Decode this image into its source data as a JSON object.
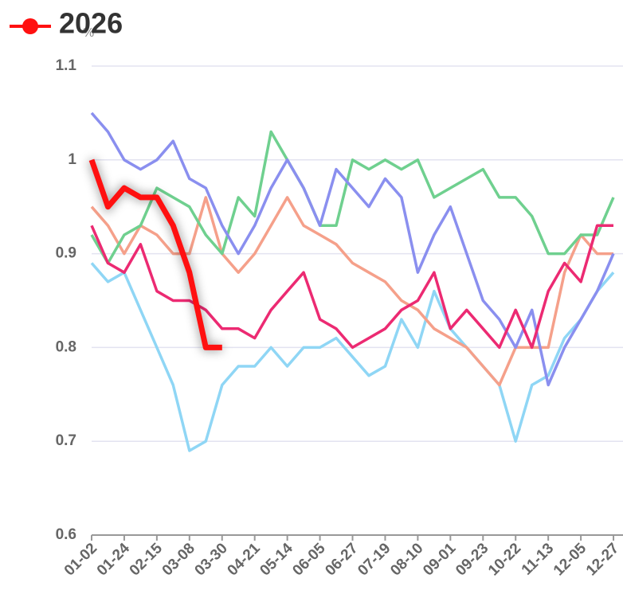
{
  "chart_data": {
    "type": "line",
    "ylabel": "%",
    "categories": [
      "01-02",
      null,
      "01-24",
      null,
      "02-15",
      null,
      "03-08",
      null,
      "03-30",
      null,
      "04-21",
      null,
      "05-14",
      null,
      "06-05",
      null,
      "06-27",
      null,
      "07-19",
      null,
      "08-10",
      null,
      "09-01",
      null,
      "09-23",
      null,
      "10-22",
      null,
      "11-13",
      null,
      "12-05",
      null,
      "12-27"
    ],
    "series": [
      {
        "color": "#8fd6f5",
        "values": [
          0.89,
          0.87,
          0.88,
          0.84,
          0.8,
          0.76,
          0.69,
          0.7,
          0.76,
          0.78,
          0.78,
          0.8,
          0.78,
          0.8,
          0.8,
          0.81,
          0.79,
          0.77,
          0.78,
          0.83,
          0.8,
          0.86,
          0.82,
          0.8,
          0.78,
          0.76,
          0.7,
          0.76,
          0.77,
          0.81,
          0.83,
          0.86,
          0.88
        ]
      },
      {
        "color": "#f5a08a",
        "values": [
          0.95,
          0.93,
          0.9,
          0.93,
          0.92,
          0.9,
          0.9,
          0.96,
          0.9,
          0.88,
          0.9,
          0.93,
          0.96,
          0.93,
          0.92,
          0.91,
          0.89,
          0.88,
          0.87,
          0.85,
          0.84,
          0.82,
          0.81,
          0.8,
          0.78,
          0.76,
          0.8,
          0.8,
          0.8,
          0.88,
          0.92,
          0.9,
          0.9
        ]
      },
      {
        "color": "#6fd08f",
        "values": [
          0.92,
          0.89,
          0.92,
          0.93,
          0.97,
          0.96,
          0.95,
          0.92,
          0.9,
          0.96,
          0.94,
          1.03,
          1.0,
          0.97,
          0.93,
          0.93,
          1.0,
          0.99,
          1.0,
          0.99,
          1.0,
          0.96,
          0.97,
          0.98,
          0.99,
          0.96,
          0.96,
          0.94,
          0.9,
          0.9,
          0.92,
          0.92,
          0.96
        ]
      },
      {
        "color": "#8a8fef",
        "values": [
          1.05,
          1.03,
          1.0,
          0.99,
          1.0,
          1.02,
          0.98,
          0.97,
          0.93,
          0.9,
          0.93,
          0.97,
          1.0,
          0.97,
          0.93,
          0.99,
          0.97,
          0.95,
          0.98,
          0.96,
          0.88,
          0.92,
          0.95,
          0.9,
          0.85,
          0.83,
          0.8,
          0.84,
          0.76,
          0.8,
          0.83,
          0.86,
          0.9
        ]
      },
      {
        "color": "#ec2a72",
        "values": [
          0.93,
          0.89,
          0.88,
          0.91,
          0.86,
          0.85,
          0.85,
          0.84,
          0.82,
          0.82,
          0.81,
          0.84,
          0.86,
          0.88,
          0.83,
          0.82,
          0.8,
          0.81,
          0.82,
          0.84,
          0.85,
          0.88,
          0.82,
          0.84,
          0.82,
          0.8,
          0.84,
          0.8,
          0.86,
          0.89,
          0.87,
          0.93,
          0.93
        ]
      },
      {
        "name": "2026",
        "color": "#ff1010",
        "values": [
          1.0,
          0.95,
          0.97,
          0.96,
          0.96,
          0.93,
          0.88,
          0.8,
          0.8,
          null,
          null,
          null,
          null,
          null,
          null,
          null,
          null,
          null,
          null,
          null,
          null,
          null,
          null,
          null,
          null,
          null,
          null,
          null,
          null,
          null,
          null,
          null,
          null
        ]
      }
    ],
    "ylim": [
      0.6,
      1.1
    ],
    "yticks": [
      0.6,
      0.7,
      0.8,
      0.9,
      1,
      1.1
    ],
    "grid": true
  }
}
